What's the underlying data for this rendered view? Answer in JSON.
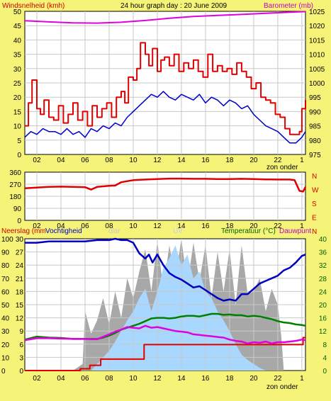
{
  "colors": {
    "background": "#f6f478",
    "plot_bg": "#ffffff",
    "wind_gust": "#e00000",
    "wind_avg": "#0000d0",
    "barometer": "#e000e0",
    "direction": "#e00000",
    "rain": "#e00000",
    "humidity": "#0000c0",
    "solar": "#a8a8a8",
    "uv": "#a8d8ff",
    "temperature": "#008000",
    "dewpoint": "#e000e0",
    "label_red": "#d00000",
    "label_magenta": "#c000c0",
    "label_green": "#006000",
    "grid": "#c8c8c8"
  },
  "chart_data": [
    {
      "type": "line",
      "title": "24 hour graph day : 20 June 2009",
      "left_label": "Windsnelheid (kmh)",
      "right_label": "Barometer (mb)",
      "x_ticks": [
        "02",
        "04",
        "06",
        "08",
        "10",
        "12",
        "14",
        "16",
        "18",
        "20",
        "22",
        "1"
      ],
      "x_note": "zon onder",
      "ylim_left": [
        0,
        50
      ],
      "y_ticks_left": [
        "0",
        "5",
        "10",
        "15",
        "20",
        "25",
        "30",
        "35",
        "40",
        "45",
        "50"
      ],
      "ylim_right": [
        975,
        1025
      ],
      "y_ticks_right": [
        "975",
        "980",
        "985",
        "990",
        "995",
        "1000",
        "1005",
        "1010",
        "1015",
        "1020",
        "1025"
      ],
      "grid": true,
      "series": [
        {
          "key": "gust",
          "axis": "left",
          "x": [
            0,
            0.3,
            0.6,
            1,
            1.3,
            1.6,
            2,
            2.4,
            2.8,
            3.2,
            3.6,
            4,
            4.4,
            4.8,
            5.2,
            5.6,
            6,
            6.4,
            6.8,
            7.2,
            7.6,
            8,
            8.3,
            8.6,
            9,
            9.3,
            9.6,
            10,
            10.3,
            10.6,
            11,
            11.3,
            11.6,
            12,
            12.4,
            12.8,
            13.2,
            13.6,
            14,
            14.4,
            14.8,
            15.2,
            15.6,
            16,
            16.4,
            16.8,
            17.2,
            17.6,
            18,
            18.4,
            18.8,
            19.2,
            19.6,
            20,
            20.4,
            20.8,
            21.2,
            21.6,
            22,
            22.4,
            22.8,
            23,
            23.3
          ],
          "y": [
            10,
            18,
            26,
            16,
            14,
            19,
            13,
            12,
            17,
            11,
            14,
            18,
            12,
            15,
            10,
            17,
            13,
            16,
            18,
            13,
            20,
            22,
            18,
            27,
            26,
            30,
            39,
            35,
            31,
            37,
            29,
            33,
            34,
            31,
            35,
            29,
            32,
            30,
            33,
            29,
            27,
            35,
            29,
            31,
            29,
            30,
            28,
            32,
            29,
            27,
            23,
            25,
            20,
            19,
            18,
            14,
            13,
            9,
            7,
            7,
            8,
            16,
            19
          ]
        },
        {
          "key": "avg",
          "axis": "left",
          "x": [
            0,
            0.5,
            1,
            1.5,
            2,
            2.5,
            3,
            3.5,
            4,
            4.5,
            5,
            5.5,
            6,
            6.5,
            7,
            7.5,
            8,
            8.5,
            9,
            9.5,
            10,
            10.5,
            11,
            11.5,
            12,
            12.5,
            13,
            13.5,
            14,
            14.5,
            15,
            15.5,
            16,
            16.5,
            17,
            17.5,
            18,
            18.5,
            19,
            19.5,
            20,
            20.5,
            21,
            21.5,
            22,
            22.5,
            23,
            23.3
          ],
          "y": [
            6,
            8,
            7,
            9,
            8,
            8,
            7,
            9,
            7,
            8,
            6,
            9,
            8,
            10,
            9,
            11,
            10,
            13,
            15,
            17,
            19,
            21,
            20,
            22,
            20,
            19,
            21,
            20,
            19,
            21,
            18,
            20,
            19,
            17,
            19,
            18,
            16,
            17,
            14,
            12,
            10,
            9,
            8,
            6,
            4,
            4,
            6,
            8
          ]
        },
        {
          "key": "baro",
          "axis": "right",
          "x": [
            0,
            2,
            4,
            6,
            8,
            10,
            12,
            14,
            16,
            18,
            20,
            22,
            23.3
          ],
          "y": [
            1021.7,
            1021.3,
            1021,
            1020.9,
            1021.2,
            1021.8,
            1022.6,
            1023.2,
            1023.6,
            1023.9,
            1024.3,
            1024.7,
            1024.9
          ]
        }
      ]
    },
    {
      "type": "line",
      "right_label_letters": [
        "N",
        "W",
        "S",
        "E",
        "N"
      ],
      "x_ticks": [
        "02",
        "04",
        "06",
        "08",
        "10",
        "12",
        "14",
        "16",
        "18",
        "20",
        "22",
        "1"
      ],
      "ylim": [
        0,
        360
      ],
      "y_ticks": [
        "0",
        "90",
        "180",
        "270",
        "360"
      ],
      "grid": true,
      "series": [
        {
          "key": "dir",
          "x": [
            0,
            1,
            2,
            3,
            4,
            5,
            5.5,
            6,
            7,
            7.5,
            8,
            9,
            10,
            11,
            12,
            13,
            14,
            15,
            16,
            17,
            18,
            19,
            20,
            21,
            22,
            22.4,
            22.8,
            23.1,
            23.3
          ],
          "y": [
            240,
            245,
            250,
            252,
            250,
            248,
            230,
            250,
            258,
            260,
            285,
            300,
            305,
            308,
            312,
            312,
            310,
            310,
            308,
            308,
            310,
            308,
            306,
            305,
            305,
            300,
            220,
            215,
            250
          ]
        }
      ]
    },
    {
      "type": "area",
      "labels_top": {
        "rain": "Neerslag (mm",
        "humidity": "Vochtigheid",
        "solar": "olar",
        "uv": "UV",
        "temperature": "Temperatuur (°C)",
        "dewpoint": "Dauwpunt"
      },
      "x_ticks": [
        "02",
        "04",
        "06",
        "08",
        "10",
        "12",
        "14",
        "16",
        "18",
        "20",
        "22",
        "1"
      ],
      "x_note": "zon onder",
      "ylim_humidity": [
        0,
        100
      ],
      "y_ticks_humidity": [
        "0",
        "10",
        "20",
        "30",
        "40",
        "50",
        "60",
        "70",
        "80",
        "90",
        "100"
      ],
      "ylim_rain": [
        0,
        30
      ],
      "y_ticks_rain": [
        "0",
        "3",
        "6",
        "9",
        "12",
        "15",
        "18",
        "21",
        "24",
        "27",
        "30"
      ],
      "ylim_temp": [
        0,
        40
      ],
      "y_ticks_temp": [
        "0",
        "4",
        "8",
        "12",
        "16",
        "20",
        "24",
        "28",
        "32",
        "36",
        "40"
      ],
      "grid": true,
      "series": [
        {
          "key": "solar",
          "axis": "humidity",
          "x": [
            0,
            3,
            4,
            4.8,
            5,
            5.5,
            6,
            6.5,
            7,
            7.5,
            8,
            8.5,
            9,
            9.5,
            10,
            10.5,
            11,
            11.5,
            12,
            12.5,
            13,
            13.5,
            14,
            14.5,
            15,
            15.5,
            16,
            16.5,
            17,
            17.5,
            18,
            18.5,
            19,
            19.5,
            20,
            20.5,
            21,
            21.3,
            21.5,
            23.3
          ],
          "y": [
            0,
            0,
            0,
            5,
            45,
            28,
            38,
            55,
            35,
            60,
            40,
            70,
            55,
            75,
            92,
            60,
            98,
            62,
            95,
            70,
            100,
            65,
            97,
            68,
            95,
            55,
            90,
            60,
            92,
            50,
            95,
            58,
            60,
            70,
            45,
            62,
            50,
            25,
            0,
            0
          ]
        },
        {
          "key": "uv",
          "axis": "humidity",
          "x": [
            0,
            5.5,
            6,
            6.5,
            7,
            7.5,
            8,
            8.5,
            9,
            9.5,
            10,
            10.5,
            11,
            11.5,
            12,
            12.5,
            13,
            13.5,
            14,
            14.5,
            15,
            15.5,
            16,
            16.5,
            17,
            17.5,
            18,
            18.5,
            19,
            19.5,
            20,
            23.3
          ],
          "y": [
            0,
            0,
            5,
            10,
            15,
            22,
            30,
            38,
            45,
            55,
            62,
            45,
            60,
            78,
            85,
            95,
            80,
            88,
            70,
            75,
            60,
            55,
            45,
            38,
            30,
            20,
            12,
            8,
            5,
            2,
            0,
            0
          ]
        },
        {
          "key": "humidity",
          "axis": "humidity",
          "x": [
            0,
            1,
            2,
            3,
            4,
            5,
            6,
            7,
            7.5,
            8,
            8.5,
            9,
            9.5,
            10,
            10.3,
            10.6,
            11,
            11.5,
            12,
            12.5,
            13,
            13.5,
            14,
            14.5,
            15,
            15.5,
            16,
            16.5,
            17,
            17.5,
            18,
            18.5,
            19,
            19.5,
            20,
            20.5,
            21,
            21.5,
            22,
            22.5,
            23,
            23.3
          ],
          "y": [
            97,
            97,
            98,
            98,
            98,
            98,
            99,
            99,
            100,
            99,
            99,
            97,
            89,
            85,
            88,
            82,
            88,
            80,
            74,
            71,
            69,
            66,
            63,
            64,
            61,
            58,
            55,
            53,
            54,
            53,
            58,
            58,
            62,
            66,
            68,
            70,
            72,
            76,
            78,
            82,
            87,
            88
          ]
        },
        {
          "key": "rain",
          "axis": "rain",
          "x": [
            0,
            4.5,
            4.6,
            5.0,
            5.4,
            5.8,
            6.2,
            6.3,
            6.6,
            6.9,
            7.2,
            9.8,
            9.9,
            23.0,
            23.1,
            23.3
          ],
          "y": [
            0,
            0,
            0.4,
            0.4,
            1.2,
            1.2,
            1.2,
            2.6,
            2.6,
            2.6,
            2.6,
            2.6,
            5.9,
            5.9,
            7.5,
            7.5
          ]
        },
        {
          "key": "temp",
          "axis": "temp",
          "x": [
            0,
            1,
            2,
            3,
            4,
            5,
            6,
            6.5,
            7,
            7.5,
            8,
            8.5,
            9,
            9.5,
            10,
            10.5,
            11,
            11.5,
            12,
            12.5,
            13,
            13.5,
            14,
            14.5,
            15,
            15.5,
            16,
            16.5,
            17,
            17.5,
            18,
            18.5,
            19,
            19.5,
            20,
            20.5,
            21,
            21.5,
            22,
            22.5,
            23,
            23.3
          ],
          "y": [
            9.4,
            10.3,
            10.0,
            9.9,
            9.6,
            9.6,
            9.6,
            10.0,
            10.6,
            11.4,
            12.4,
            13.0,
            13.6,
            14.2,
            15.0,
            15.8,
            16.0,
            16.0,
            15.8,
            16.0,
            16.4,
            16.6,
            16.6,
            16.4,
            16.8,
            17.2,
            17.2,
            16.9,
            17.0,
            16.8,
            16.8,
            16.4,
            16.6,
            16.4,
            16.0,
            15.6,
            15.0,
            14.6,
            14.4,
            14.0,
            13.8,
            13.6
          ]
        },
        {
          "key": "dew",
          "axis": "temp",
          "x": [
            0,
            1,
            2,
            3,
            4,
            5,
            6,
            7,
            7.5,
            8,
            8.5,
            9,
            9.5,
            10,
            10.5,
            11,
            11.5,
            12,
            12.5,
            13,
            13.5,
            14,
            14.5,
            15,
            15.5,
            16,
            16.5,
            17,
            17.5,
            18,
            18.5,
            19,
            19.5,
            20,
            20.5,
            21,
            21.5,
            22,
            22.5,
            23,
            23.3
          ],
          "y": [
            9.2,
            9.8,
            9.8,
            9.7,
            9.6,
            9.6,
            9.5,
            11.0,
            11.8,
            12.4,
            13.2,
            13.0,
            12.8,
            13.6,
            13.0,
            13.2,
            12.8,
            12.4,
            12.0,
            11.8,
            11.6,
            11.0,
            10.8,
            10.6,
            10.4,
            10.2,
            10.0,
            9.4,
            9.0,
            8.8,
            8.2,
            8.6,
            8.4,
            8.8,
            8.2,
            8.6,
            8.6,
            8.8,
            9.0,
            9.4,
            9.2
          ]
        }
      ]
    }
  ]
}
